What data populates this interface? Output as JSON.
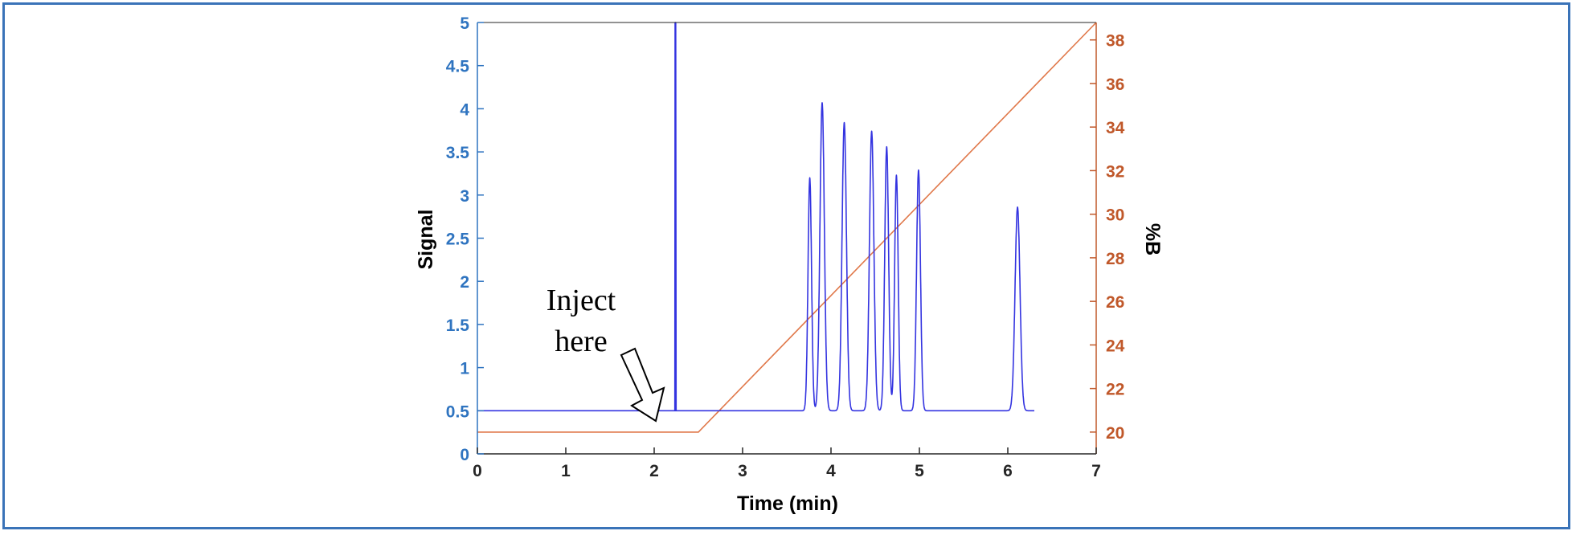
{
  "chart_data": {
    "type": "line",
    "title": "",
    "xlabel": "Time (min)",
    "ylabel_left": "Signal",
    "ylabel_right": "%B",
    "xlim": [
      0,
      7
    ],
    "ylim_left": [
      0,
      5
    ],
    "ylim_right": [
      19,
      38.8
    ],
    "x_ticks": [
      "0",
      "1",
      "2",
      "3",
      "4",
      "5",
      "6",
      "7"
    ],
    "y_left_ticks": [
      "0",
      "0.5",
      "1",
      "1.5",
      "2",
      "2.5",
      "3",
      "3.5",
      "4",
      "4.5",
      "5"
    ],
    "y_right_ticks": [
      "20",
      "22",
      "24",
      "26",
      "28",
      "30",
      "32",
      "34",
      "36",
      "38"
    ],
    "grid": false,
    "colors": {
      "signal": "#3434e0",
      "gradient": "#e0784a",
      "left_axis": "#2f74c0",
      "right_axis": "#c0582a"
    },
    "signal": {
      "baseline": 0.5,
      "x_end": 6.3,
      "void_spike": {
        "x": 2.24,
        "height": 5.0
      },
      "peaks": [
        {
          "x": 3.76,
          "height": 3.2,
          "width": 0.02
        },
        {
          "x": 3.9,
          "height": 4.07,
          "width": 0.025
        },
        {
          "x": 4.15,
          "height": 3.84,
          "width": 0.025
        },
        {
          "x": 4.46,
          "height": 3.74,
          "width": 0.025
        },
        {
          "x": 4.63,
          "height": 3.56,
          "width": 0.022
        },
        {
          "x": 4.74,
          "height": 3.23,
          "width": 0.02
        },
        {
          "x": 4.99,
          "height": 3.29,
          "width": 0.022
        },
        {
          "x": 6.11,
          "height": 2.86,
          "width": 0.028
        }
      ]
    },
    "gradient": {
      "x": [
        0,
        2.5,
        7
      ],
      "y": [
        20,
        20,
        38.8
      ]
    },
    "annotation": {
      "line1": "Inject",
      "line2": "here",
      "x": 2.0,
      "y": 0.5
    }
  }
}
